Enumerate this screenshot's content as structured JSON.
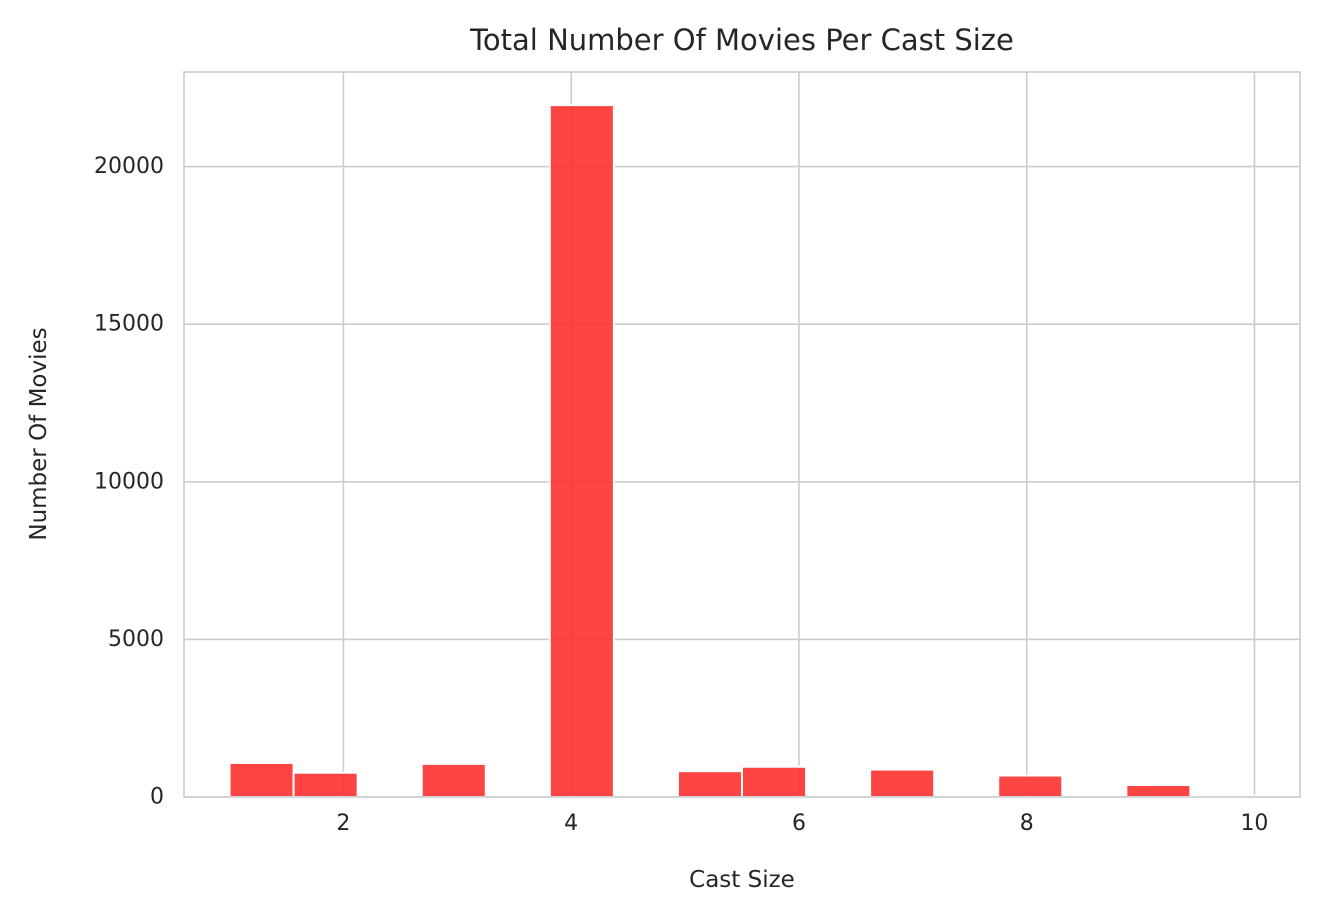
{
  "chart_data": {
    "type": "bar",
    "title": "Total Number Of Movies Per Cast Size",
    "xlabel": "Cast Size",
    "ylabel": "Number Of Movies",
    "xlim": [
      0.6,
      10.4
    ],
    "ylim": [
      0,
      23000
    ],
    "xticks": [
      2,
      4,
      6,
      8,
      10
    ],
    "yticks": [
      0,
      5000,
      10000,
      15000,
      20000
    ],
    "grid": true,
    "bar_color": "#ff2a2a",
    "bars": [
      {
        "x0": 1.0,
        "x1": 1.5625,
        "value": 1080
      },
      {
        "x0": 1.5625,
        "x1": 2.125,
        "value": 770
      },
      {
        "x0": 2.6875,
        "x1": 3.25,
        "value": 1050
      },
      {
        "x0": 3.8125,
        "x1": 4.375,
        "value": 21950
      },
      {
        "x0": 4.9375,
        "x1": 5.5,
        "value": 820
      },
      {
        "x0": 5.5,
        "x1": 6.0625,
        "value": 960
      },
      {
        "x0": 6.625,
        "x1": 7.1875,
        "value": 870
      },
      {
        "x0": 7.75,
        "x1": 8.3125,
        "value": 680
      },
      {
        "x0": 8.875,
        "x1": 9.4375,
        "value": 380
      },
      {
        "x0": 9.4375,
        "x1": 10.0,
        "value": 40
      }
    ]
  }
}
